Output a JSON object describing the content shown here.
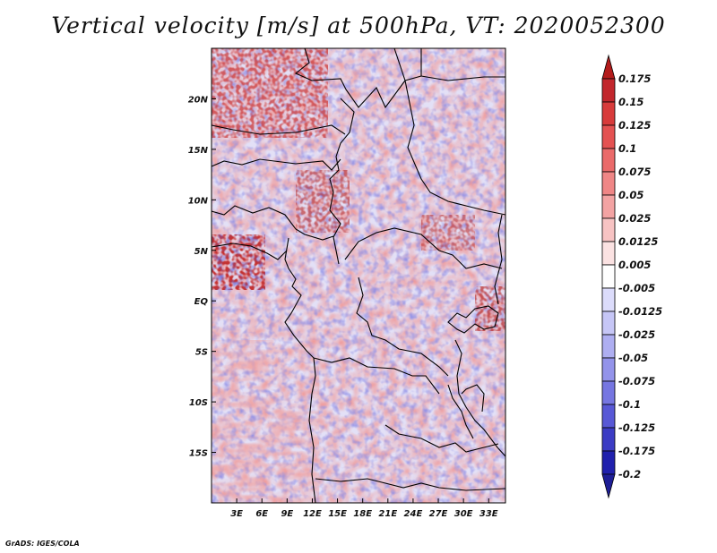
{
  "title": "Vertical velocity [m/s] at 500hPa, VT: 2020052300",
  "credit": "GrADS: IGES/COLA",
  "map": {
    "lon_ticks": [
      "3E",
      "6E",
      "9E",
      "12E",
      "15E",
      "18E",
      "21E",
      "24E",
      "27E",
      "30E",
      "33E"
    ],
    "lon_values": [
      3,
      6,
      9,
      12,
      15,
      18,
      21,
      24,
      27,
      30,
      33
    ],
    "lat_ticks": [
      "20N",
      "15N",
      "10N",
      "5N",
      "EQ",
      "5S",
      "10S",
      "15S"
    ],
    "lat_values": [
      20,
      15,
      10,
      5,
      0,
      -5,
      -10,
      -15
    ],
    "lon_range": [
      0,
      35
    ],
    "lat_range": [
      -20,
      25
    ]
  },
  "colorbar": {
    "levels": [
      "0.175",
      "0.15",
      "0.125",
      "0.1",
      "0.075",
      "0.05",
      "0.025",
      "0.0125",
      "0.005",
      "-0.005",
      "-0.0125",
      "-0.025",
      "-0.05",
      "-0.075",
      "-0.1",
      "-0.125",
      "-0.175",
      "-0.2"
    ],
    "colors": [
      "#a50f15",
      "#c2272d",
      "#d83b3b",
      "#e45252",
      "#ea6a6a",
      "#ef8686",
      "#f3a3a3",
      "#f7c3c3",
      "#fbe2e2",
      "#ffffff",
      "#dcdcfb",
      "#c6c6f6",
      "#aeaef1",
      "#9393ea",
      "#7676e1",
      "#5858d6",
      "#3c3cc4",
      "#2020ad",
      "#10108f"
    ],
    "low_color": "#1e1e96",
    "high_color": "#b31b1b"
  }
}
